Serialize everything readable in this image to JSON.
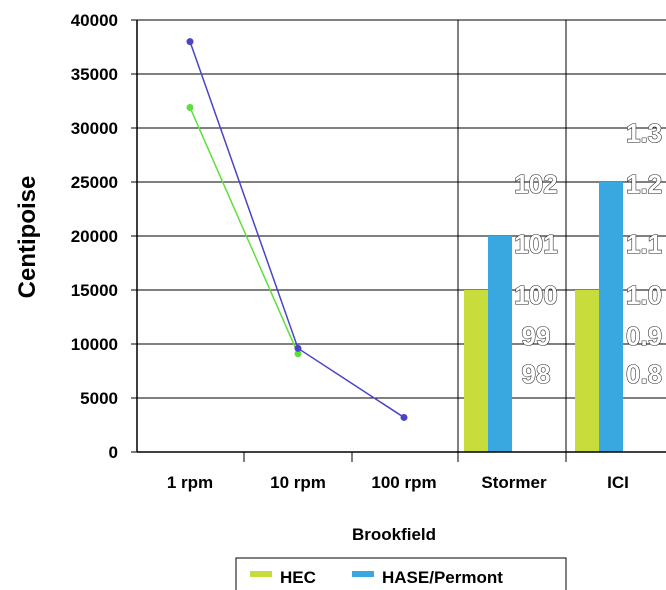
{
  "chart_data": {
    "type": "bar+line",
    "ylabel": "Centipoise",
    "xlabel": "Brookfield",
    "ylim": [
      0,
      40000
    ],
    "yticks": [
      0,
      5000,
      10000,
      15000,
      20000,
      25000,
      30000,
      35000,
      40000
    ],
    "grid": true,
    "brookfield": {
      "type": "line",
      "categories": [
        "1 rpm",
        "10 rpm",
        "100 rpm"
      ],
      "series": [
        {
          "name": "HEC",
          "values": [
            31900,
            9100,
            null
          ],
          "color": "#5ce03a"
        },
        {
          "name": "HASE/Permont",
          "values": [
            38000,
            9600,
            3200
          ],
          "color": "#4a44c8"
        }
      ]
    },
    "panels": [
      {
        "name": "Stormer",
        "type": "bar",
        "values": {
          "HEC": 15000,
          "HASE/Permont": 20000
        },
        "scale_labels": [
          "98",
          "99",
          "100",
          "101",
          "102"
        ]
      },
      {
        "name": "ICI",
        "type": "bar",
        "values": {
          "HEC": 15000,
          "HASE/Permont": 25000
        },
        "scale_labels": [
          "0.8",
          "0.9",
          "1.0",
          "1.1",
          "1.2",
          "1.3"
        ]
      }
    ],
    "legend": {
      "position": "bottom",
      "items": [
        {
          "name": "HEC",
          "color": "#c8dc3c"
        },
        {
          "name": "HASE/Permont",
          "color": "#3aa8e0"
        }
      ]
    }
  }
}
